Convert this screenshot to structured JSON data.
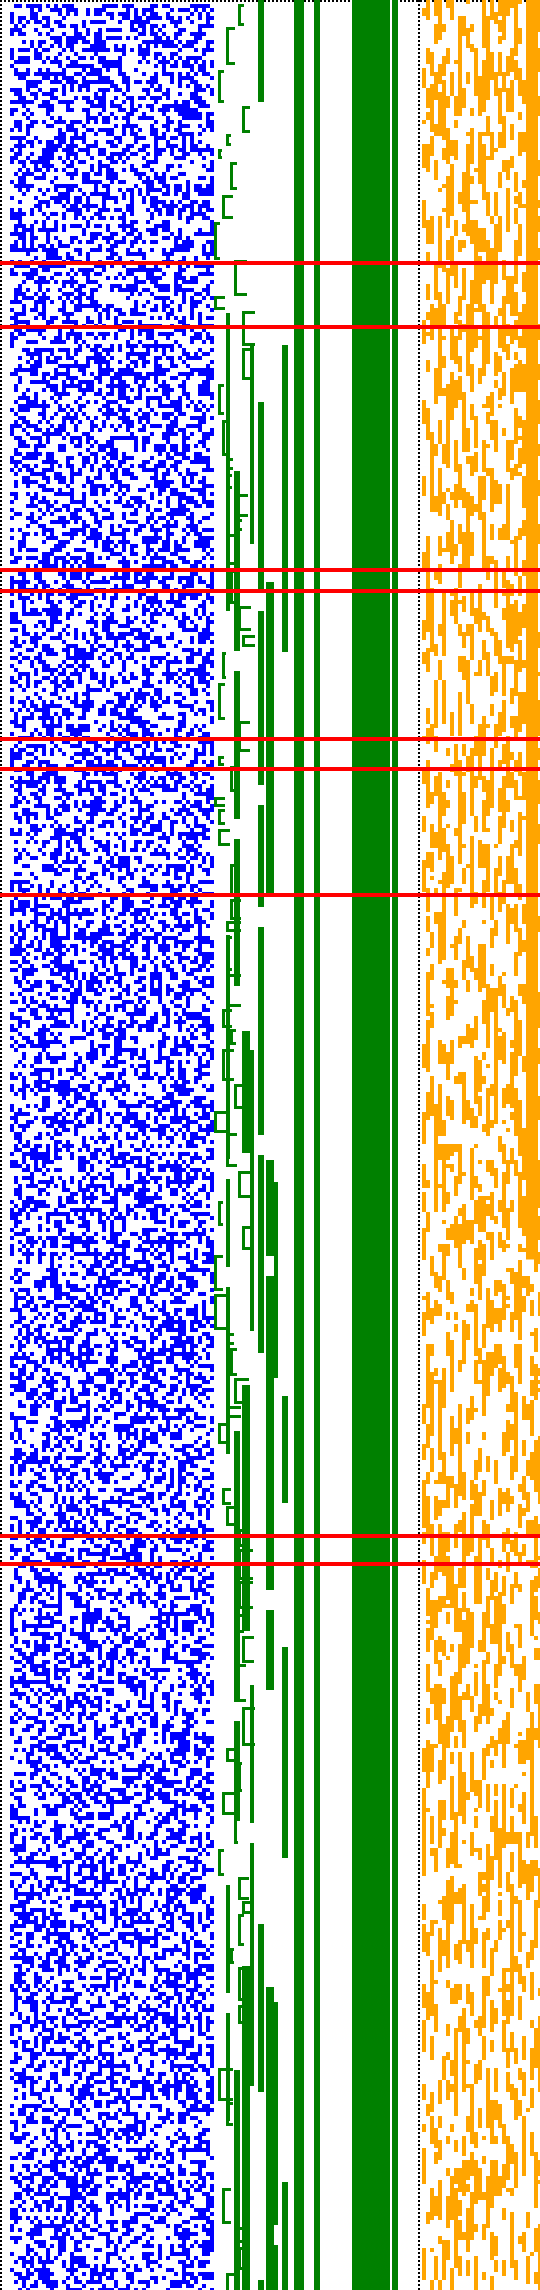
{
  "visualization": {
    "kind": "pixel-level stripe visualization",
    "colors": {
      "background": "#ffffff",
      "left_block": "#0000ff",
      "tree_lines": "#008000",
      "green_bars": "#008000",
      "right_block": "#ffa500",
      "separators": "#ff0000",
      "dotted_borders": "#000000"
    },
    "sections": [
      {
        "name": "blue-noise-block",
        "color": "#0000ff"
      },
      {
        "name": "green-tree-block",
        "color": "#008000"
      },
      {
        "name": "green-bars-block",
        "color": "#008000"
      },
      {
        "name": "orange-noise-block",
        "color": "#ffa500"
      }
    ],
    "grid": {
      "cell_size": 4,
      "fill_probability": 0.45
    },
    "separator_row_fraction": [
      0.114,
      0.142,
      0.248,
      0.257,
      0.322,
      0.335,
      0.39,
      0.67,
      0.682
    ],
    "random_seed": 1337
  }
}
